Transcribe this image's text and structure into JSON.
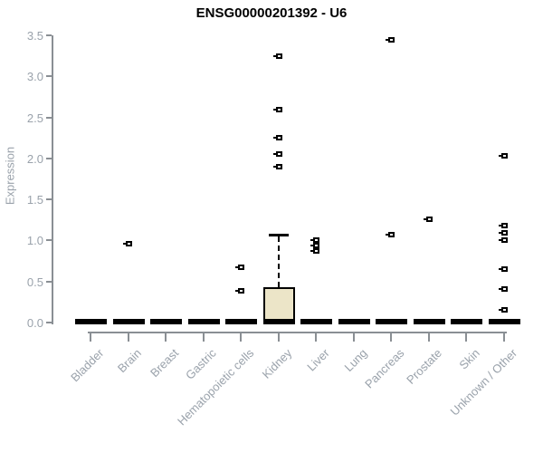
{
  "title": "ENSG00000201392 - U6",
  "chart_data": {
    "type": "boxplot",
    "title": "ENSG00000201392 - U6",
    "xlabel": "",
    "ylabel": "Expression",
    "ylim": [
      0.0,
      3.5
    ],
    "ytick_labels": [
      "0.0",
      "0.5",
      "1.0",
      "1.5",
      "2.0",
      "2.5",
      "3.0",
      "3.5"
    ],
    "grid": false,
    "legend": "none",
    "categories": [
      "Bladder",
      "Brain",
      "Breast",
      "Gastric",
      "Hematopoietic cells",
      "Kidney",
      "Liver",
      "Lung",
      "Pancreas",
      "Prostate",
      "Skin",
      "Unknown / Other"
    ],
    "series": [
      {
        "category": "Bladder",
        "median": 0.0,
        "q1": 0.0,
        "q3": 0.0,
        "whisker_low": 0.0,
        "whisker_high": 0.0,
        "outliers": []
      },
      {
        "category": "Brain",
        "median": 0.0,
        "q1": 0.0,
        "q3": 0.0,
        "whisker_low": 0.0,
        "whisker_high": 0.0,
        "outliers": [
          0.96
        ]
      },
      {
        "category": "Breast",
        "median": 0.0,
        "q1": 0.0,
        "q3": 0.0,
        "whisker_low": 0.0,
        "whisker_high": 0.0,
        "outliers": []
      },
      {
        "category": "Gastric",
        "median": 0.0,
        "q1": 0.0,
        "q3": 0.0,
        "whisker_low": 0.0,
        "whisker_high": 0.0,
        "outliers": []
      },
      {
        "category": "Hematopoietic cells",
        "median": 0.0,
        "q1": 0.0,
        "q3": 0.0,
        "whisker_low": 0.0,
        "whisker_high": 0.0,
        "outliers": [
          0.67,
          0.39
        ]
      },
      {
        "category": "Kidney",
        "median": 0.0,
        "q1": 0.0,
        "q3": 0.43,
        "whisker_low": 0.0,
        "whisker_high": 1.08,
        "outliers": [
          3.25,
          2.6,
          2.25,
          2.05,
          1.9
        ]
      },
      {
        "category": "Liver",
        "median": 0.0,
        "q1": 0.0,
        "q3": 0.0,
        "whisker_low": 0.0,
        "whisker_high": 0.0,
        "outliers": [
          1.0,
          0.94,
          0.87
        ]
      },
      {
        "category": "Lung",
        "median": 0.0,
        "q1": 0.0,
        "q3": 0.0,
        "whisker_low": 0.0,
        "whisker_high": 0.0,
        "outliers": []
      },
      {
        "category": "Pancreas",
        "median": 0.0,
        "q1": 0.0,
        "q3": 0.0,
        "whisker_low": 0.0,
        "whisker_high": 0.0,
        "outliers": [
          3.45,
          1.07
        ]
      },
      {
        "category": "Prostate",
        "median": 0.0,
        "q1": 0.0,
        "q3": 0.0,
        "whisker_low": 0.0,
        "whisker_high": 0.0,
        "outliers": [
          1.26
        ]
      },
      {
        "category": "Skin",
        "median": 0.0,
        "q1": 0.0,
        "q3": 0.0,
        "whisker_low": 0.0,
        "whisker_high": 0.0,
        "outliers": []
      },
      {
        "category": "Unknown / Other",
        "median": 0.0,
        "q1": 0.0,
        "q3": 0.0,
        "whisker_low": 0.0,
        "whisker_high": 0.0,
        "outliers": [
          2.03,
          1.18,
          1.09,
          1.01,
          0.65,
          0.41,
          0.15
        ]
      }
    ],
    "colors": {
      "background": "#ffffff",
      "title": "#000000",
      "axis_line": "#8a8f94",
      "tick_label": "#9aa2ab",
      "box_fill": "#ece5c8",
      "box_border": "#000000",
      "median": "#000000",
      "whisker": "#000000",
      "outlier": "#000000"
    }
  }
}
